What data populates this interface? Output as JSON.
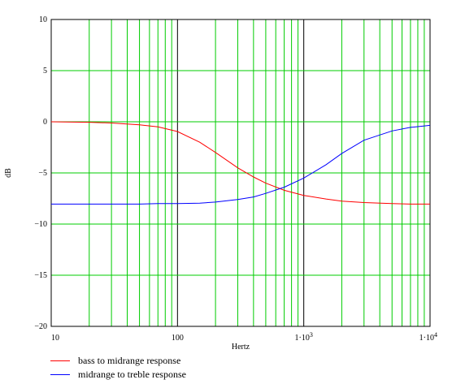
{
  "chart_data": {
    "type": "line",
    "title": "",
    "xlabel": "Hertz",
    "ylabel": "dB",
    "x_scale": "log",
    "xlim": [
      10,
      10000
    ],
    "ylim": [
      -20,
      10
    ],
    "grid": true,
    "x_tick_labels": [
      {
        "value": 10,
        "label": "10"
      },
      {
        "value": 100,
        "label": "100"
      },
      {
        "value": 1000,
        "label": "1·10",
        "sup": "3"
      },
      {
        "value": 10000,
        "label": "1·10",
        "sup": "4"
      }
    ],
    "y_ticks": [
      10,
      5,
      0,
      -5,
      -10,
      -15,
      -20
    ],
    "y_tick_labels": [
      "10",
      "5",
      "0",
      "−5",
      "−10",
      "−15",
      "−20"
    ],
    "series": [
      {
        "name": "bass to midrange response",
        "color": "#ff0000",
        "x": [
          10,
          20,
          30,
          50,
          70,
          100,
          150,
          200,
          300,
          400,
          500,
          700,
          1000,
          1500,
          2000,
          3000,
          5000,
          7000,
          10000
        ],
        "y": [
          0.0,
          -0.05,
          -0.12,
          -0.3,
          -0.5,
          -0.95,
          -2.0,
          -3.0,
          -4.5,
          -5.4,
          -6.0,
          -6.7,
          -7.2,
          -7.55,
          -7.75,
          -7.9,
          -8.0,
          -8.05,
          -8.05
        ]
      },
      {
        "name": "midrange to treble response",
        "color": "#0000ff",
        "x": [
          10,
          20,
          30,
          50,
          70,
          100,
          150,
          200,
          300,
          400,
          500,
          700,
          1000,
          1500,
          2000,
          3000,
          5000,
          7000,
          10000
        ],
        "y": [
          -8.05,
          -8.05,
          -8.05,
          -8.05,
          -8.0,
          -8.0,
          -7.95,
          -7.85,
          -7.6,
          -7.35,
          -7.0,
          -6.4,
          -5.5,
          -4.2,
          -3.1,
          -1.8,
          -0.9,
          -0.55,
          -0.35
        ]
      }
    ]
  },
  "colors": {
    "grid_minor": "#00cc00",
    "grid_major": "#000000",
    "axes": "#000000"
  }
}
